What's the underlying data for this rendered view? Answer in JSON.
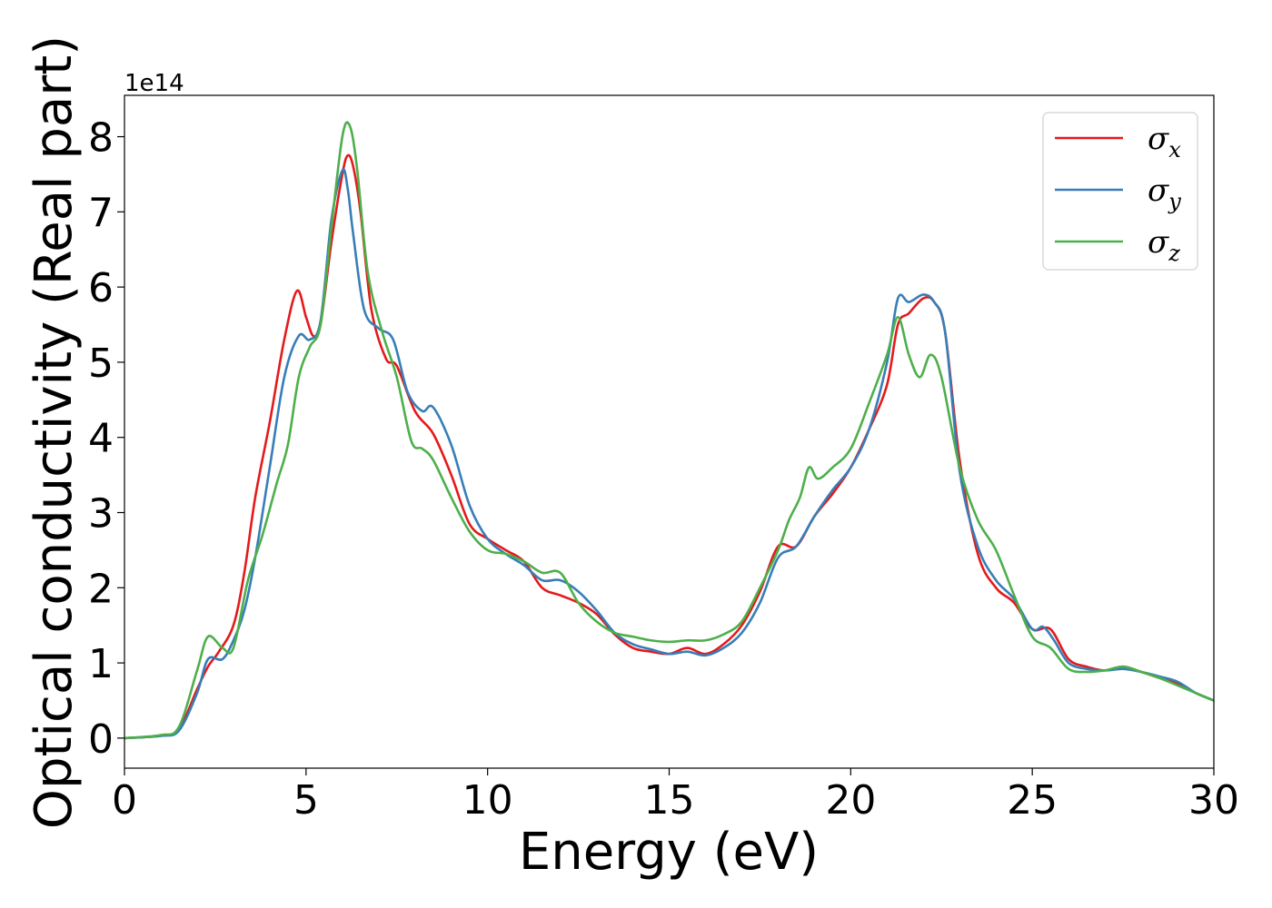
{
  "chart_data": {
    "type": "line",
    "xlabel": "Energy (eV)",
    "ylabel": "Optical conductivity (Real part)",
    "y_offset_text": "1e14",
    "xlim": [
      0,
      30
    ],
    "ylim": [
      -0.4,
      8.55
    ],
    "x_ticks": [
      0,
      5,
      10,
      15,
      20,
      25,
      30
    ],
    "y_ticks": [
      0,
      1,
      2,
      3,
      4,
      5,
      6,
      7,
      8
    ],
    "grid": false,
    "legend_position": "top-right",
    "series": [
      {
        "name": "σx",
        "symbol": "σ",
        "subscript": "x",
        "color": "#e41a1c",
        "x": [
          0,
          1,
          1.5,
          2,
          2.3,
          2.6,
          3,
          3.3,
          3.6,
          4,
          4.4,
          4.75,
          5,
          5.2,
          5.4,
          5.7,
          6,
          6.15,
          6.3,
          6.5,
          6.8,
          7.2,
          7.5,
          8,
          8.5,
          9,
          9.5,
          10,
          10.5,
          11,
          11.5,
          12,
          12.5,
          13,
          13.5,
          14,
          14.5,
          15,
          15.5,
          16,
          16.5,
          17,
          17.5,
          18,
          18.5,
          19,
          19.5,
          20,
          20.5,
          21,
          21.3,
          21.6,
          22,
          22.3,
          22.6,
          23,
          23.5,
          24,
          24.5,
          25,
          25.5,
          26,
          26.5,
          27,
          27.5,
          28,
          28.5,
          29,
          29.5,
          30
        ],
        "y": [
          0,
          0.03,
          0.12,
          0.65,
          0.95,
          1.15,
          1.5,
          2.2,
          3.2,
          4.2,
          5.3,
          5.95,
          5.6,
          5.35,
          5.5,
          6.6,
          7.5,
          7.75,
          7.6,
          7.0,
          5.7,
          5.05,
          4.95,
          4.35,
          4.05,
          3.5,
          2.85,
          2.65,
          2.5,
          2.35,
          2.0,
          1.9,
          1.8,
          1.65,
          1.38,
          1.2,
          1.15,
          1.12,
          1.2,
          1.12,
          1.25,
          1.5,
          1.95,
          2.55,
          2.55,
          2.95,
          3.25,
          3.6,
          4.1,
          4.7,
          5.5,
          5.65,
          5.85,
          5.8,
          5.4,
          3.7,
          2.45,
          2.0,
          1.8,
          1.45,
          1.45,
          1.05,
          0.95,
          0.9,
          0.95,
          0.88,
          0.8,
          0.72,
          0.6,
          0.5
        ]
      },
      {
        "name": "σy",
        "symbol": "σ",
        "subscript": "y",
        "color": "#377eb8",
        "x": [
          0,
          1,
          1.5,
          2,
          2.3,
          2.7,
          3,
          3.3,
          3.6,
          4,
          4.4,
          4.8,
          5.1,
          5.4,
          5.7,
          6,
          6.15,
          6.3,
          6.6,
          7,
          7.4,
          7.8,
          8.2,
          8.5,
          9,
          9.5,
          10,
          10.5,
          11,
          11.5,
          12,
          12.5,
          13,
          13.5,
          14,
          14.5,
          15,
          15.5,
          16,
          16.5,
          17,
          17.5,
          18,
          18.5,
          19,
          19.5,
          20,
          20.5,
          21,
          21.3,
          21.6,
          22,
          22.3,
          22.6,
          23,
          23.5,
          24,
          24.5,
          25,
          25.3,
          25.6,
          26,
          26.5,
          27,
          27.5,
          28,
          28.5,
          29,
          29.5,
          30
        ],
        "y": [
          0,
          0.03,
          0.1,
          0.6,
          1.05,
          1.05,
          1.3,
          1.7,
          2.4,
          3.6,
          4.8,
          5.35,
          5.3,
          5.55,
          6.9,
          7.55,
          7.3,
          6.7,
          5.7,
          5.45,
          5.3,
          4.6,
          4.35,
          4.4,
          3.9,
          3.1,
          2.65,
          2.45,
          2.3,
          2.1,
          2.1,
          1.95,
          1.7,
          1.4,
          1.25,
          1.18,
          1.12,
          1.15,
          1.1,
          1.2,
          1.4,
          1.8,
          2.4,
          2.55,
          2.95,
          3.3,
          3.6,
          4.1,
          5.0,
          5.85,
          5.8,
          5.9,
          5.8,
          5.4,
          3.55,
          2.55,
          2.1,
          1.85,
          1.45,
          1.48,
          1.3,
          1.0,
          0.92,
          0.9,
          0.92,
          0.88,
          0.82,
          0.75,
          0.6,
          0.5
        ]
      },
      {
        "name": "σz",
        "symbol": "σ",
        "subscript": "z",
        "color": "#4daf4a",
        "x": [
          0,
          1,
          1.5,
          2,
          2.3,
          2.7,
          3,
          3.4,
          3.8,
          4.2,
          4.5,
          4.8,
          5.1,
          5.4,
          5.7,
          6,
          6.2,
          6.4,
          6.7,
          7.1,
          7.5,
          7.9,
          8.2,
          8.5,
          9,
          9.5,
          10,
          10.5,
          11,
          11.5,
          12,
          12.5,
          13,
          13.5,
          14,
          14.5,
          15,
          15.5,
          16,
          16.5,
          17,
          17.5,
          18,
          18.3,
          18.6,
          18.85,
          19.1,
          19.5,
          20,
          20.5,
          21,
          21.3,
          21.6,
          21.9,
          22.2,
          22.5,
          23,
          23.5,
          24,
          24.5,
          25,
          25.5,
          26,
          26.5,
          27,
          27.5,
          28,
          28.5,
          29,
          29.5,
          30
        ],
        "y": [
          0,
          0.04,
          0.15,
          0.9,
          1.35,
          1.2,
          1.2,
          2.1,
          2.7,
          3.4,
          3.9,
          4.8,
          5.2,
          5.5,
          6.8,
          8.0,
          8.15,
          7.6,
          6.2,
          5.4,
          4.8,
          3.95,
          3.85,
          3.7,
          3.2,
          2.75,
          2.5,
          2.45,
          2.35,
          2.2,
          2.2,
          1.8,
          1.55,
          1.4,
          1.35,
          1.3,
          1.28,
          1.3,
          1.3,
          1.38,
          1.55,
          2.0,
          2.5,
          2.9,
          3.2,
          3.6,
          3.45,
          3.6,
          3.85,
          4.45,
          5.1,
          5.6,
          5.1,
          4.8,
          5.1,
          4.8,
          3.6,
          2.9,
          2.5,
          1.9,
          1.35,
          1.2,
          0.92,
          0.88,
          0.9,
          0.95,
          0.88,
          0.8,
          0.7,
          0.6,
          0.5
        ]
      }
    ]
  }
}
